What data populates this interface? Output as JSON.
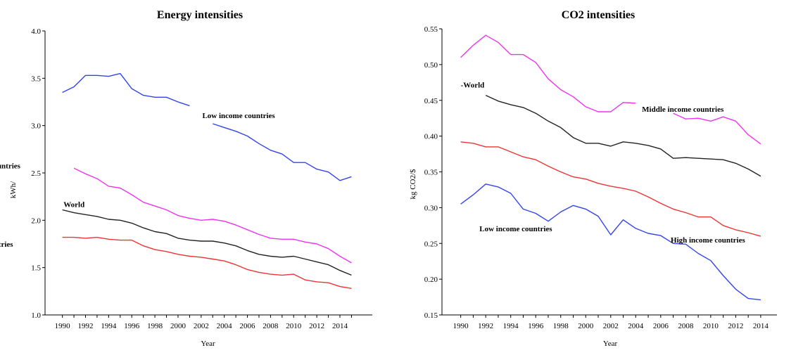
{
  "chart_data": [
    {
      "type": "line",
      "title": "Energy intensities",
      "xlabel": "Year",
      "ylabel": "kWh/",
      "ylim": [
        1.0,
        4.0
      ],
      "yticks": [
        "1.0",
        "1.5",
        "2.0",
        "2.5",
        "3.0",
        "3.5",
        "4.0"
      ],
      "xticks": [
        "1990",
        "1992",
        "1994",
        "1996",
        "1998",
        "2000",
        "2002",
        "2004",
        "2006",
        "2008",
        "2010",
        "2012",
        "2014"
      ],
      "x": [
        1990,
        1991,
        1992,
        1993,
        1994,
        1995,
        1996,
        1997,
        1998,
        1999,
        2000,
        2001,
        2002,
        2003,
        2004,
        2005,
        2006,
        2007,
        2008,
        2009,
        2010,
        2011,
        2012,
        2013,
        2014,
        2015
      ],
      "grid": false,
      "series": [
        {
          "name": "Low income countries",
          "color": "#3344ee",
          "values": [
            3.35,
            3.41,
            3.53,
            3.53,
            3.52,
            3.55,
            3.39,
            3.32,
            3.3,
            3.3,
            3.25,
            3.21,
            null,
            3.02,
            2.98,
            2.94,
            2.89,
            2.81,
            2.74,
            2.7,
            2.61,
            2.61,
            2.54,
            2.51,
            2.42,
            2.46
          ]
        },
        {
          "name": "Middle income countries",
          "color": "#ee33ee",
          "values": [
            null,
            2.55,
            2.49,
            2.44,
            2.36,
            2.34,
            2.27,
            2.19,
            2.15,
            2.11,
            2.05,
            2.02,
            2.0,
            2.01,
            1.99,
            1.95,
            1.9,
            1.85,
            1.81,
            1.8,
            1.8,
            1.77,
            1.75,
            1.7,
            1.62,
            1.55
          ]
        },
        {
          "name": "World",
          "color": "#222222",
          "values": [
            2.11,
            2.08,
            2.06,
            2.04,
            2.01,
            2.0,
            1.97,
            1.92,
            1.88,
            1.86,
            1.81,
            1.79,
            1.78,
            1.78,
            1.76,
            1.73,
            1.68,
            1.64,
            1.62,
            1.61,
            1.62,
            1.59,
            1.56,
            1.53,
            1.47,
            1.42
          ]
        },
        {
          "name": "High income countries",
          "color": "#ee3333",
          "values": [
            1.82,
            1.82,
            1.81,
            1.82,
            1.8,
            1.79,
            1.79,
            1.73,
            1.69,
            1.67,
            1.64,
            1.62,
            1.61,
            1.59,
            1.57,
            1.53,
            1.48,
            1.45,
            1.43,
            1.42,
            1.43,
            1.37,
            1.35,
            1.34,
            1.3,
            1.28
          ]
        }
      ]
    },
    {
      "type": "line",
      "title": "CO2 intensities",
      "xlabel": "Year",
      "ylabel": "kg CO2/$",
      "ylim": [
        0.15,
        0.55
      ],
      "yticks": [
        "0.15",
        "0.20",
        "0.25",
        "0.30",
        "0.35",
        "0.40",
        "0.45",
        "0.50",
        "0.55"
      ],
      "xticks": [
        "1990",
        "1992",
        "1994",
        "1996",
        "1998",
        "2000",
        "2002",
        "2004",
        "2006",
        "2008",
        "2010",
        "2012",
        "2014"
      ],
      "x": [
        1990,
        1991,
        1992,
        1993,
        1994,
        1995,
        1996,
        1997,
        1998,
        1999,
        2000,
        2001,
        2002,
        2003,
        2004,
        2005,
        2006,
        2007,
        2008,
        2009,
        2010,
        2011,
        2012,
        2013,
        2014
      ],
      "grid": false,
      "series": [
        {
          "name": "Middle income countries",
          "color": "#ee33ee",
          "values": [
            0.51,
            0.527,
            0.541,
            0.531,
            0.514,
            0.514,
            0.503,
            0.48,
            0.465,
            0.455,
            0.441,
            0.434,
            0.434,
            0.447,
            0.446,
            null,
            null,
            0.432,
            0.424,
            0.425,
            0.421,
            0.427,
            0.421,
            0.402,
            0.389
          ]
        },
        {
          "name": "World",
          "color": "#222222",
          "values": [
            null,
            null,
            0.457,
            0.449,
            0.444,
            0.44,
            0.432,
            0.421,
            0.412,
            0.398,
            0.39,
            0.39,
            0.386,
            0.392,
            0.39,
            0.387,
            0.382,
            0.369,
            0.37,
            0.369,
            0.368,
            0.367,
            0.362,
            0.354,
            0.344
          ]
        },
        {
          "name": "High income countries",
          "color": "#ee3333",
          "values": [
            0.392,
            0.39,
            0.385,
            0.385,
            0.378,
            0.371,
            0.367,
            0.358,
            0.35,
            0.343,
            0.34,
            0.334,
            0.33,
            0.327,
            0.323,
            0.315,
            0.306,
            0.298,
            0.293,
            0.287,
            0.287,
            0.275,
            0.269,
            0.265,
            0.26
          ]
        },
        {
          "name": "Low income countries",
          "color": "#3344ee",
          "values": [
            0.305,
            0.318,
            0.333,
            0.329,
            0.32,
            0.298,
            0.292,
            0.281,
            0.294,
            0.303,
            0.298,
            0.288,
            0.262,
            0.283,
            0.271,
            0.264,
            0.261,
            0.25,
            0.249,
            0.236,
            0.226,
            0.205,
            0.186,
            0.173,
            0.171
          ]
        }
      ]
    }
  ],
  "annotations": [
    {
      "chart": 0,
      "text": "Low income countries",
      "year": 2002.1,
      "value": 3.08
    },
    {
      "chart": 0,
      "text": "Middle income countries",
      "year": 1979.3,
      "value": 2.55
    },
    {
      "chart": 0,
      "text": "World",
      "year": 1990.1,
      "value": 2.14
    },
    {
      "chart": 0,
      "text": "High income countries",
      "year": 1979.3,
      "value": 1.72
    },
    {
      "chart": 1,
      "text": "-World",
      "year": 1990,
      "value": 0.468
    },
    {
      "chart": 1,
      "text": "Middle income countries",
      "year": 2004.5,
      "value": 0.434
    },
    {
      "chart": 1,
      "text": "Low income countries",
      "year": 1991.5,
      "value": 0.267
    },
    {
      "chart": 1,
      "text": "High income countries",
      "year": 2006.8,
      "value": 0.251
    }
  ]
}
